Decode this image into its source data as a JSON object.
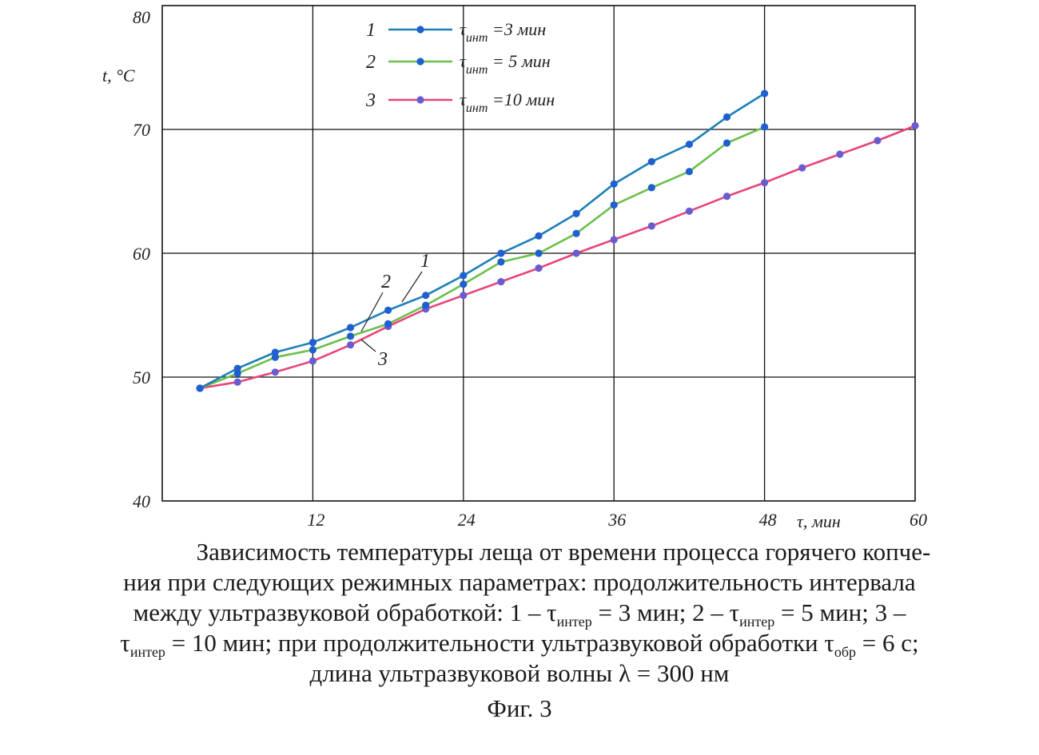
{
  "chart_data": {
    "type": "line",
    "ylabel": "t, °C",
    "xlabel": "τ, мин",
    "xlim": [
      0,
      60
    ],
    "ylim": [
      40,
      80
    ],
    "x_ticks": [
      "12",
      "24",
      "36",
      "48",
      "60"
    ],
    "y_ticks": [
      "40",
      "50",
      "60",
      "70",
      "80"
    ],
    "grid": true,
    "legend_position": "top-left",
    "legend": [
      {
        "num": "1",
        "label": "τинт =3 мин",
        "label_main": "τ",
        "label_sub": "инт",
        "label_rest": " =3 мин",
        "color": "#1e7fb8"
      },
      {
        "num": "2",
        "label": "τинт = 5 мин",
        "label_main": "τ",
        "label_sub": "инт",
        "label_rest": " = 5 мин",
        "color": "#6cbf4a"
      },
      {
        "num": "3",
        "label": "τинт =10 мин",
        "label_main": "τ",
        "label_sub": "инт",
        "label_rest": " =10 мин",
        "color": "#e8457a"
      }
    ],
    "series": [
      {
        "name": "1",
        "color": "#1e7fb8",
        "marker_color": "#1f5fcf",
        "x": [
          3,
          6,
          9,
          12,
          15,
          18,
          21,
          24,
          27,
          30,
          33,
          36,
          39,
          42,
          45,
          48
        ],
        "y": [
          49.1,
          50.7,
          52.0,
          52.8,
          54.0,
          55.4,
          56.6,
          58.2,
          60.0,
          61.4,
          63.2,
          65.6,
          67.4,
          68.8,
          71.0,
          72.9
        ]
      },
      {
        "name": "2",
        "color": "#6cbf4a",
        "marker_color": "#1f5fcf",
        "x": [
          3,
          6,
          9,
          12,
          15,
          18,
          21,
          24,
          27,
          30,
          33,
          36,
          39,
          42,
          45,
          48
        ],
        "y": [
          49.1,
          50.3,
          51.6,
          52.2,
          53.3,
          54.3,
          55.8,
          57.5,
          59.3,
          60.0,
          61.6,
          63.9,
          65.3,
          66.6,
          68.9,
          70.2
        ]
      },
      {
        "name": "3",
        "color": "#e8457a",
        "marker_color": "#6a5bd0",
        "x": [
          3,
          6,
          9,
          12,
          15,
          18,
          21,
          24,
          27,
          30,
          33,
          36,
          39,
          42,
          45,
          48,
          51,
          54,
          57,
          60
        ],
        "y": [
          49.1,
          49.6,
          50.4,
          51.3,
          52.6,
          54.1,
          55.5,
          56.6,
          57.7,
          58.8,
          60.0,
          61.1,
          62.2,
          63.4,
          64.6,
          65.7,
          66.9,
          68.0,
          69.1,
          70.3
        ]
      }
    ],
    "curve_labels": [
      "1",
      "2",
      "3"
    ]
  },
  "caption": {
    "line1": "Зависимость температуры леща от времени процесса горячего копче-",
    "line2": "ния при следующих режимных параметрах: продолжительность интервала",
    "line3a": "между ультразвуковой обработкой: 1 – τ",
    "sub_inter": "интер",
    "line3b": " = 3 мин; 2 – τ",
    "line3c": " = 5 мин; 3 –",
    "line4a": "τ",
    "line4b": " = 10 мин; при продолжительности ультразвуковой обработки τ",
    "sub_obr": "обр",
    "line4c": " = 6 с;",
    "line5": "длина ультразвуковой волны λ = 300 нм",
    "fig": "Фиг. 3"
  }
}
